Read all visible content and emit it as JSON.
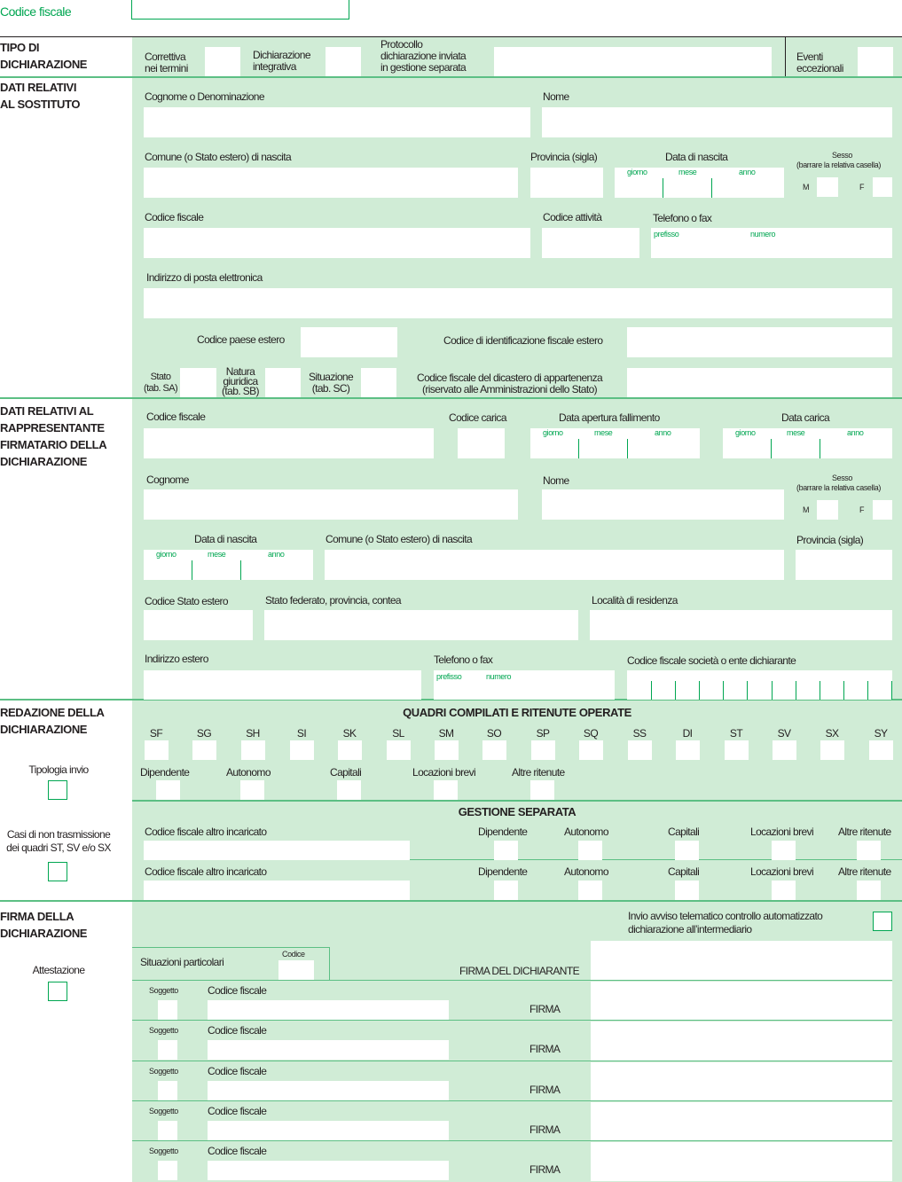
{
  "header": {
    "codice_fiscale_label": "Codice fiscale"
  },
  "tipo_dichiarazione": {
    "title": "TIPO DI\nDICHIARAZIONE",
    "correttiva": "Correttiva\nnei termini",
    "integrativa": "Dichiarazione\nintegrativa",
    "protocollo": "Protocollo\ndichiarazione inviata\nin gestione separata",
    "eventi": "Eventi\neccezionali"
  },
  "sostituto": {
    "title": "DATI RELATIVI\nAL SOSTITUTO",
    "cognome": "Cognome o Denominazione",
    "nome": "Nome",
    "comune": "Comune (o Stato estero) di nascita",
    "provincia": "Provincia (sigla)",
    "data_nascita": "Data di nascita",
    "giorno": "giorno",
    "mese": "mese",
    "anno": "anno",
    "sesso": "Sesso",
    "sesso_note": "(barrare la relativa casella)",
    "m": "M",
    "f": "F",
    "codice_fiscale": "Codice fiscale",
    "codice_attivita": "Codice attività",
    "telefono": "Telefono o fax",
    "prefisso": "prefisso",
    "numero": "numero",
    "email": "Indirizzo di posta elettronica",
    "codice_paese": "Codice paese estero",
    "id_fiscale_estero": "Codice di identificazione fiscale estero",
    "stato": "Stato\n(tab. SA)",
    "natura": "Natura\ngiuridica\n(tab. SB)",
    "situazione": "Situazione\n(tab. SC)",
    "dicastero": "Codice fiscale del dicastero di appartenenza\n(riservato alle Amministrazioni dello Stato)"
  },
  "rappresentante": {
    "title": "DATI RELATIVI AL\nRAPPRESENTANTE\nFIRMATARIO DELLA\nDICHIARAZIONE",
    "codice_fiscale": "Codice fiscale",
    "codice_carica": "Codice carica",
    "data_fallimento": "Data apertura fallimento",
    "data_carica": "Data carica",
    "giorno": "giorno",
    "mese": "mese",
    "anno": "anno",
    "cognome": "Cognome",
    "nome": "Nome",
    "sesso": "Sesso",
    "sesso_note": "(barrare la relativa casella)",
    "m": "M",
    "f": "F",
    "data_nascita": "Data di nascita",
    "comune": "Comune (o Stato estero) di nascita",
    "provincia": "Provincia (sigla)",
    "codice_stato": "Codice Stato estero",
    "stato_federato": "Stato federato, provincia, contea",
    "localita": "Località di residenza",
    "indirizzo": "Indirizzo estero",
    "telefono": "Telefono o fax",
    "prefisso": "prefisso",
    "numero": "numero",
    "cf_societa": "Codice fiscale società o ente dichiarante"
  },
  "redazione": {
    "title": "REDAZIONE DELLA\nDICHIARAZIONE",
    "quadri_title": "QUADRI COMPILATI E RITENUTE OPERATE",
    "quadri": [
      "SF",
      "SG",
      "SH",
      "SI",
      "SK",
      "SL",
      "SM",
      "SO",
      "SP",
      "SQ",
      "SS",
      "DI",
      "ST",
      "SV",
      "SX",
      "SY"
    ],
    "tipologia_invio": "Tipologia invio",
    "ritenute": [
      "Dipendente",
      "Autonomo",
      "Capitali",
      "Locazioni brevi",
      "Altre ritenute"
    ],
    "gestione_title": "GESTIONE SEPARATA",
    "casi_non_trasmissione": "Casi di non trasmissione\ndei quadri ST, SV e/o SX",
    "cf_altro_incaricato": "Codice fiscale altro incaricato"
  },
  "firma": {
    "title": "FIRMA DELLA\nDICHIARAZIONE",
    "attestazione": "Attestazione",
    "invio_avviso": "Invio avviso telematico controllo automatizzato\ndichiarazione all’intermediario",
    "situazioni_particolari": "Situazioni particolari",
    "codice": "Codice",
    "firma_dichiarante": "FIRMA DEL DICHIARANTE",
    "soggetto": "Soggetto",
    "codice_fiscale": "Codice fiscale",
    "firma": "FIRMA"
  },
  "colors": {
    "panel": "#d0ecd6",
    "accent": "#00a651",
    "line": "#5cbf84"
  }
}
